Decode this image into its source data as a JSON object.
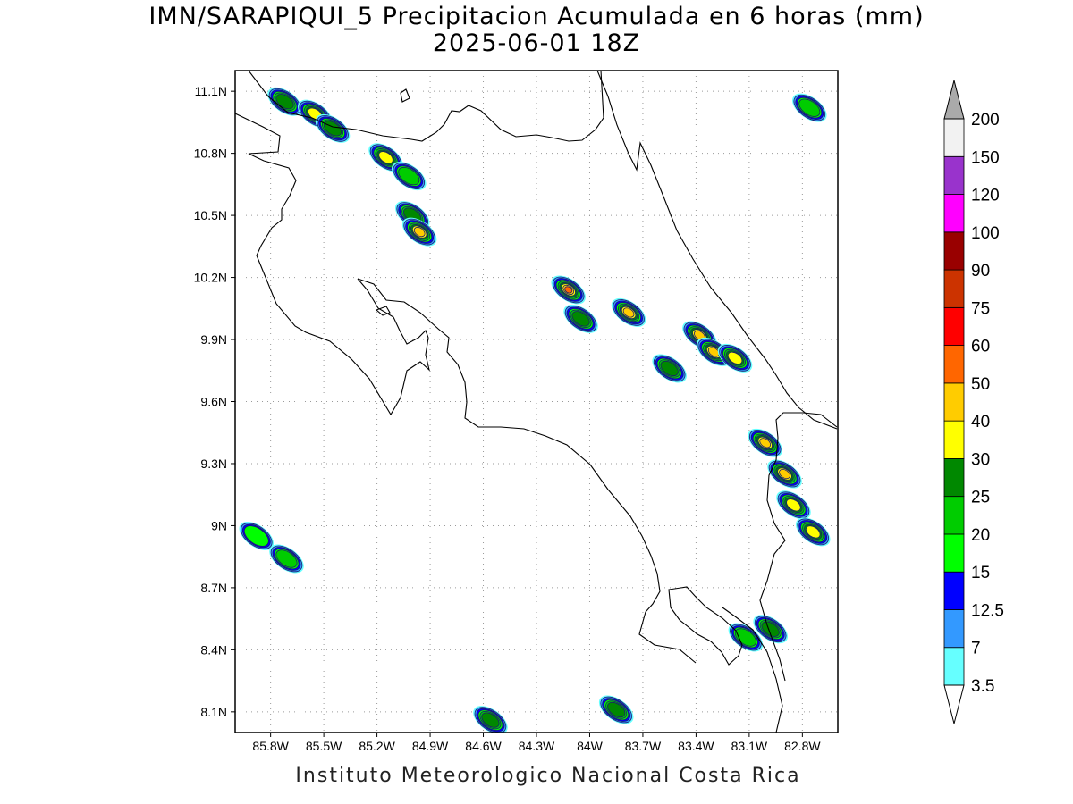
{
  "title": {
    "line1": "IMN/SARAPIQUI_5 Precipitacion Acumulada en 6 horas (mm)",
    "line2": "2025-06-01 18Z"
  },
  "footer": "Instituto Meteorologico Nacional Costa Rica",
  "map": {
    "lon_range": [
      -86.0,
      -82.6
    ],
    "lat_range": [
      8.0,
      11.2
    ],
    "lon_ticks": [
      "85.8W",
      "85.5W",
      "85.2W",
      "84.9W",
      "84.6W",
      "84.3W",
      "84W",
      "83.7W",
      "83.4W",
      "83.1W",
      "82.8W"
    ],
    "lon_tick_values": [
      -85.8,
      -85.5,
      -85.2,
      -84.9,
      -84.6,
      -84.3,
      -84.0,
      -83.7,
      -83.4,
      -83.1,
      -82.8
    ],
    "lat_ticks": [
      "11.1N",
      "10.8N",
      "10.5N",
      "10.2N",
      "9.9N",
      "9.6N",
      "9.3N",
      "9N",
      "8.7N",
      "8.4N",
      "8.1N"
    ],
    "lat_tick_values": [
      11.1,
      10.8,
      10.5,
      10.2,
      9.9,
      9.6,
      9.3,
      9.0,
      8.7,
      8.4,
      8.1
    ],
    "grid": "dotted"
  },
  "colorbar": {
    "labels": [
      "3.5",
      "7",
      "12.5",
      "15",
      "20",
      "25",
      "30",
      "40",
      "50",
      "60",
      "75",
      "90",
      "100",
      "120",
      "150",
      "200"
    ],
    "colors": [
      "#66ffff",
      "#3399ff",
      "#0000ff",
      "#00ff00",
      "#00cc00",
      "#008800",
      "#ffff00",
      "#ffcc00",
      "#ff6600",
      "#ff0000",
      "#cc3300",
      "#990000",
      "#ff00ff",
      "#9933cc",
      "#f2f2f2",
      "#aaaaaa"
    ]
  },
  "precip_cells": [
    {
      "lon": -85.72,
      "lat": 11.05,
      "max_mm": 25
    },
    {
      "lon": -85.55,
      "lat": 10.99,
      "max_mm": 30
    },
    {
      "lon": -85.45,
      "lat": 10.92,
      "max_mm": 25
    },
    {
      "lon": -85.15,
      "lat": 10.78,
      "max_mm": 30
    },
    {
      "lon": -85.02,
      "lat": 10.69,
      "max_mm": 20
    },
    {
      "lon": -85.0,
      "lat": 10.5,
      "max_mm": 25
    },
    {
      "lon": -84.96,
      "lat": 10.42,
      "max_mm": 40
    },
    {
      "lon": -84.12,
      "lat": 10.14,
      "max_mm": 75
    },
    {
      "lon": -84.05,
      "lat": 10.0,
      "max_mm": 25
    },
    {
      "lon": -83.78,
      "lat": 10.03,
      "max_mm": 40
    },
    {
      "lon": -83.55,
      "lat": 9.76,
      "max_mm": 25
    },
    {
      "lon": -83.38,
      "lat": 9.92,
      "max_mm": 40
    },
    {
      "lon": -83.3,
      "lat": 9.84,
      "max_mm": 40
    },
    {
      "lon": -83.18,
      "lat": 9.81,
      "max_mm": 30
    },
    {
      "lon": -83.01,
      "lat": 9.4,
      "max_mm": 40
    },
    {
      "lon": -82.9,
      "lat": 9.25,
      "max_mm": 40
    },
    {
      "lon": -82.85,
      "lat": 9.1,
      "max_mm": 30
    },
    {
      "lon": -82.74,
      "lat": 8.97,
      "max_mm": 30
    },
    {
      "lon": -82.76,
      "lat": 11.02,
      "max_mm": 20
    },
    {
      "lon": -85.88,
      "lat": 8.95,
      "max_mm": 15
    },
    {
      "lon": -85.71,
      "lat": 8.84,
      "max_mm": 20
    },
    {
      "lon": -84.56,
      "lat": 8.06,
      "max_mm": 25
    },
    {
      "lon": -83.85,
      "lat": 8.11,
      "max_mm": 25
    },
    {
      "lon": -83.12,
      "lat": 8.46,
      "max_mm": 20
    },
    {
      "lon": -82.98,
      "lat": 8.5,
      "max_mm": 25
    }
  ]
}
